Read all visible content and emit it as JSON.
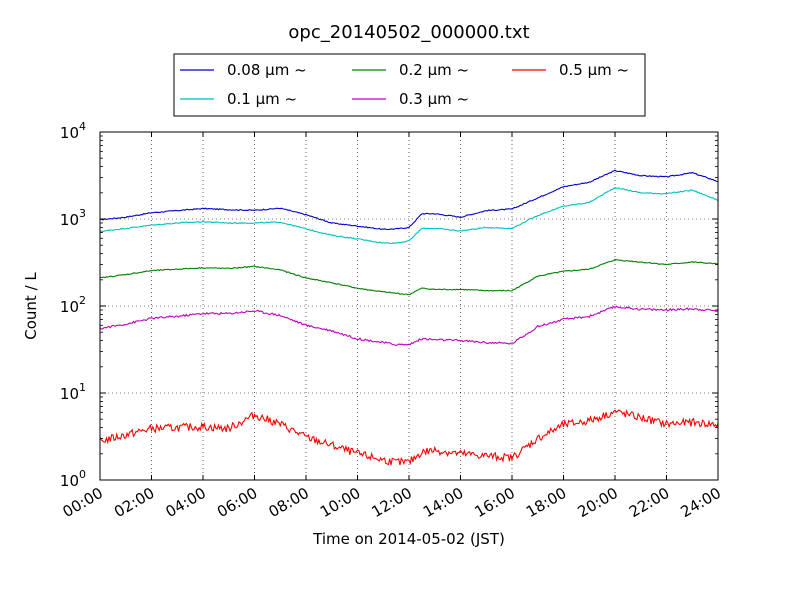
{
  "chart_data": {
    "type": "line",
    "title": "opc_20140502_000000.txt",
    "xlabel": "Time on 2014-05-02 (JST)",
    "ylabel": "Count / L",
    "y_scale": "log",
    "ylim": [
      1,
      10000
    ],
    "xlim": [
      "00:00",
      "24:00"
    ],
    "grid": true,
    "legend_position": "top-center",
    "x_ticks": [
      "00:00",
      "02:00",
      "04:00",
      "06:00",
      "08:00",
      "10:00",
      "12:00",
      "14:00",
      "16:00",
      "18:00",
      "20:00",
      "22:00",
      "24:00"
    ],
    "y_ticks": [
      {
        "base": "10",
        "exp": "0",
        "value": 1
      },
      {
        "base": "10",
        "exp": "1",
        "value": 10
      },
      {
        "base": "10",
        "exp": "2",
        "value": 100
      },
      {
        "base": "10",
        "exp": "3",
        "value": 1000
      },
      {
        "base": "10",
        "exp": "4",
        "value": 10000
      }
    ],
    "x": [
      "00:00",
      "01:00",
      "02:00",
      "03:00",
      "04:00",
      "05:00",
      "06:00",
      "07:00",
      "08:00",
      "09:00",
      "10:00",
      "11:00",
      "11:30",
      "12:00",
      "12:30",
      "13:00",
      "14:00",
      "15:00",
      "16:00",
      "17:00",
      "18:00",
      "19:00",
      "20:00",
      "21:00",
      "22:00",
      "23:00",
      "24:00"
    ],
    "series": [
      {
        "name": "0.08 μm ~",
        "color": "#0000cc",
        "values": [
          980,
          1050,
          1180,
          1250,
          1320,
          1280,
          1260,
          1330,
          1120,
          900,
          830,
          760,
          770,
          800,
          1150,
          1150,
          1050,
          1250,
          1300,
          1750,
          2350,
          2650,
          3600,
          3150,
          3050,
          3400,
          2700
        ]
      },
      {
        "name": "0.1 μm ~",
        "color": "#00bfbf",
        "values": [
          720,
          780,
          850,
          900,
          930,
          900,
          900,
          920,
          770,
          650,
          590,
          530,
          530,
          560,
          780,
          780,
          730,
          800,
          780,
          1100,
          1400,
          1550,
          2300,
          2000,
          1950,
          2150,
          1650
        ]
      },
      {
        "name": "0.2 μm ~",
        "color": "#008000",
        "values": [
          210,
          230,
          255,
          265,
          275,
          270,
          285,
          260,
          210,
          185,
          160,
          145,
          140,
          135,
          160,
          155,
          155,
          150,
          150,
          220,
          250,
          265,
          340,
          320,
          300,
          320,
          305
        ]
      },
      {
        "name": "0.3 μm ~",
        "color": "#bf00bf",
        "values": [
          55,
          62,
          72,
          76,
          82,
          82,
          88,
          78,
          60,
          52,
          42,
          38,
          36,
          36,
          42,
          41,
          40,
          38,
          37,
          58,
          70,
          76,
          98,
          92,
          90,
          93,
          88
        ]
      },
      {
        "name": "0.5 μm ~",
        "color": "#ff0000",
        "values": [
          2.8,
          3.3,
          3.9,
          4.0,
          4.1,
          3.9,
          5.6,
          4.4,
          3.1,
          2.5,
          2.0,
          1.7,
          1.6,
          1.6,
          2.1,
          2.2,
          2.0,
          1.9,
          1.8,
          3.0,
          4.3,
          4.8,
          6.1,
          5.2,
          4.4,
          4.6,
          4.3
        ]
      }
    ]
  }
}
